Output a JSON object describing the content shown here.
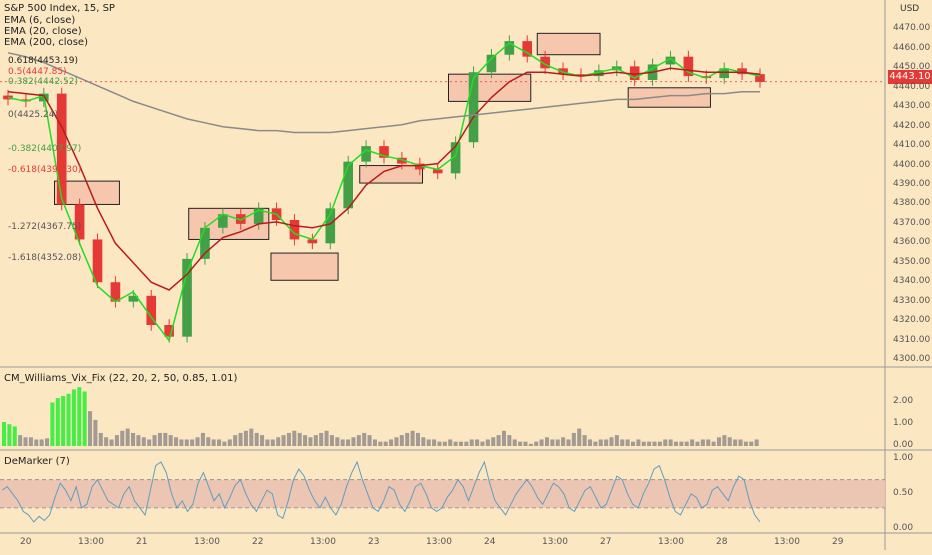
{
  "header": {
    "symbol_line": "S&P 500 Index, 15, SP",
    "ema_fast_label": "EMA (6, close)",
    "ema_mid_label": "EMA (20, close)",
    "ema_slow_label": "EMA (200, close)",
    "currency": "USD"
  },
  "price_tag": "4443.10",
  "fib_levels": [
    {
      "label": "0.618(4453.19)",
      "value": 4453.19,
      "color": "#222222"
    },
    {
      "label": "0.5(4447.85)",
      "value": 4447.85,
      "color": "#e53935"
    },
    {
      "label": "0.382(4442.52)",
      "value": 4442.52,
      "color": "#43a047"
    },
    {
      "label": "0(4425.24)",
      "value": 4425.24,
      "color": "#555555"
    },
    {
      "label": "-0.382(4407.97)",
      "value": 4407.97,
      "color": "#43a047"
    },
    {
      "label": "-0.618(4397.30)",
      "value": 4397.3,
      "color": "#e53935"
    },
    {
      "label": "-1.272(4367.75)",
      "value": 4367.75,
      "color": "#555555"
    },
    {
      "label": "-1.618(4352.08)",
      "value": 4352.08,
      "color": "#555555"
    }
  ],
  "indicators": {
    "vix_fix_label": "CM_Williams_Vix_Fix (22, 20, 2, 50, 0.85, 1.01)",
    "demarker_label": "DeMarker (7)"
  },
  "chart_data": [
    {
      "type": "candlestick",
      "title": "S&P 500 Index, 15, SP",
      "ylim": [
        4300,
        4480
      ],
      "y_ticks": [
        4300,
        4310,
        4320,
        4330,
        4340,
        4350,
        4360,
        4370,
        4380,
        4390,
        4400,
        4410,
        4420,
        4430,
        4440,
        4450,
        4460,
        4470
      ],
      "y_tick_labels": [
        "4300.00",
        "4310.00",
        "4320.00",
        "4330.00",
        "4340.00",
        "4350.00",
        "4360.00",
        "4370.00",
        "4380.00",
        "4390.00",
        "4400.00",
        "4410.00",
        "4420.00",
        "4430.00",
        "4440.00",
        "4450.00",
        "4460.00",
        "4470.00"
      ],
      "x_tick_labels": [
        "20",
        "13:00",
        "21",
        "13:00",
        "22",
        "13:00",
        "23",
        "13:00",
        "24",
        "13:00",
        "27",
        "13:00",
        "28",
        "13:00",
        "29"
      ],
      "grid": false,
      "series": [
        {
          "name": "EMA (6, close)",
          "color": "#22dd22",
          "values": [
            4435,
            4433,
            4436,
            4383,
            4360,
            4338,
            4330,
            4335,
            4322,
            4310,
            4345,
            4368,
            4375,
            4372,
            4377,
            4375,
            4365,
            4362,
            4375,
            4400,
            4408,
            4405,
            4403,
            4400,
            4398,
            4405,
            4445,
            4455,
            4463,
            4458,
            4452,
            4448,
            4446,
            4448,
            4450,
            4445,
            4450,
            4455,
            4448,
            4445,
            4450,
            4448,
            4446
          ]
        },
        {
          "name": "EMA (20, close)",
          "color": "#b71c1c",
          "values": [
            4438,
            4437,
            4436,
            4420,
            4400,
            4378,
            4360,
            4350,
            4340,
            4336,
            4344,
            4355,
            4363,
            4366,
            4370,
            4371,
            4369,
            4368,
            4370,
            4378,
            4390,
            4397,
            4400,
            4400,
            4401,
            4410,
            4425,
            4435,
            4443,
            4448,
            4448,
            4447,
            4446,
            4447,
            4448,
            4447,
            4448,
            4450,
            4449,
            4448,
            4448,
            4448,
            4447
          ]
        },
        {
          "name": "EMA (200, close)",
          "color": "#8a8a8a",
          "values": [
            4458,
            4456,
            4453,
            4449,
            4445,
            4441,
            4437,
            4433,
            4430,
            4427,
            4424,
            4422,
            4420,
            4419,
            4418,
            4418,
            4417,
            4417,
            4417,
            4418,
            4419,
            4420,
            4421,
            4423,
            4424,
            4425,
            4426,
            4427,
            4428,
            4429,
            4430,
            4431,
            4432,
            4433,
            4434,
            4434,
            4435,
            4436,
            4436,
            4437,
            4437,
            4438,
            4438
          ]
        }
      ],
      "candles": {
        "close": [
          4434,
          4433,
          4437,
          4380,
          4362,
          4340,
          4330,
          4333,
          4318,
          4312,
          4352,
          4368,
          4375,
          4370,
          4378,
          4372,
          4362,
          4360,
          4378,
          4402,
          4410,
          4404,
          4401,
          4398,
          4396,
          4412,
          4448,
          4457,
          4464,
          4456,
          4450,
          4447,
          4446,
          4449,
          4451,
          4444,
          4452,
          4456,
          4446,
          4445,
          4450,
          4447,
          4443
        ],
        "open": [
          4436,
          4434,
          4433,
          4437,
          4380,
          4362,
          4340,
          4330,
          4333,
          4318,
          4312,
          4352,
          4368,
          4375,
          4370,
          4378,
          4372,
          4362,
          4360,
          4378,
          4402,
          4410,
          4404,
          4401,
          4398,
          4396,
          4412,
          4448,
          4457,
          4464,
          4456,
          4450,
          4447,
          4446,
          4449,
          4451,
          4444,
          4452,
          4456,
          4446,
          4445,
          4450,
          4447
        ]
      }
    },
    {
      "type": "bar",
      "title": "CM_Williams_Vix_Fix (22, 20, 2, 50, 0.85, 1.01)",
      "ylim": [
        0,
        2.8
      ],
      "y_ticks": [
        0,
        1,
        2
      ],
      "y_tick_labels": [
        "0.00",
        "1.00",
        "2.00"
      ],
      "values": [
        1.1,
        1.0,
        0.9,
        0.5,
        0.4,
        0.4,
        0.3,
        0.3,
        0.35,
        2.0,
        2.2,
        2.3,
        2.4,
        2.6,
        2.7,
        2.5,
        1.6,
        1.2,
        0.6,
        0.4,
        0.3,
        0.5,
        0.7,
        0.8,
        0.6,
        0.5,
        0.4,
        0.3,
        0.5,
        0.6,
        0.6,
        0.5,
        0.4,
        0.3,
        0.3,
        0.3,
        0.4,
        0.6,
        0.4,
        0.3,
        0.3,
        0.2,
        0.3,
        0.5,
        0.6,
        0.7,
        0.8,
        0.6,
        0.5,
        0.3,
        0.3,
        0.4,
        0.5,
        0.6,
        0.7,
        0.6,
        0.5,
        0.4,
        0.5,
        0.6,
        0.7,
        0.5,
        0.4,
        0.3,
        0.3,
        0.4,
        0.5,
        0.6,
        0.5,
        0.3,
        0.2,
        0.2,
        0.3,
        0.4,
        0.5,
        0.6,
        0.7,
        0.6,
        0.4,
        0.3,
        0.3,
        0.2,
        0.2,
        0.3,
        0.2,
        0.2,
        0.2,
        0.3,
        0.3,
        0.2,
        0.3,
        0.4,
        0.5,
        0.7,
        0.5,
        0.3,
        0.2,
        0.2,
        0.1,
        0.2,
        0.3,
        0.4,
        0.3,
        0.3,
        0.4,
        0.3,
        0.6,
        0.8,
        0.5,
        0.3,
        0.2,
        0.3,
        0.3,
        0.4,
        0.5,
        0.3,
        0.3,
        0.2,
        0.3,
        0.2,
        0.2,
        0.2,
        0.2,
        0.3,
        0.3,
        0.2,
        0.2,
        0.2,
        0.3,
        0.2,
        0.3,
        0.3,
        0.2,
        0.4,
        0.5,
        0.4,
        0.3,
        0.3,
        0.2,
        0.2,
        0.3
      ],
      "highlight_colors": {
        "high": "#44ee44",
        "normal": "#a39a93"
      },
      "threshold": 1.9
    },
    {
      "type": "line",
      "title": "DeMarker (7)",
      "ylim": [
        0,
        1.05
      ],
      "y_ticks": [
        0,
        0.5,
        1
      ],
      "y_tick_labels": [
        "0.00",
        "0.50",
        "1.00"
      ],
      "band": [
        0.3,
        0.7
      ],
      "series": [
        {
          "name": "DeMarker (7)",
          "color": "#5e9ec2",
          "values": [
            0.55,
            0.6,
            0.5,
            0.4,
            0.25,
            0.2,
            0.1,
            0.18,
            0.12,
            0.2,
            0.45,
            0.65,
            0.55,
            0.4,
            0.6,
            0.3,
            0.35,
            0.6,
            0.7,
            0.55,
            0.4,
            0.35,
            0.3,
            0.5,
            0.6,
            0.4,
            0.3,
            0.2,
            0.55,
            0.9,
            0.95,
            0.8,
            0.5,
            0.3,
            0.4,
            0.25,
            0.35,
            0.65,
            0.8,
            0.6,
            0.4,
            0.5,
            0.3,
            0.45,
            0.62,
            0.7,
            0.5,
            0.35,
            0.25,
            0.4,
            0.55,
            0.5,
            0.2,
            0.15,
            0.4,
            0.7,
            0.85,
            0.75,
            0.55,
            0.4,
            0.3,
            0.45,
            0.3,
            0.2,
            0.35,
            0.6,
            0.8,
            0.95,
            0.7,
            0.5,
            0.3,
            0.25,
            0.4,
            0.6,
            0.55,
            0.35,
            0.25,
            0.4,
            0.6,
            0.65,
            0.5,
            0.3,
            0.25,
            0.3,
            0.45,
            0.55,
            0.7,
            0.6,
            0.4,
            0.6,
            0.8,
            0.95,
            0.65,
            0.4,
            0.3,
            0.2,
            0.35,
            0.5,
            0.6,
            0.7,
            0.6,
            0.45,
            0.35,
            0.5,
            0.65,
            0.6,
            0.5,
            0.3,
            0.25,
            0.4,
            0.55,
            0.6,
            0.45,
            0.3,
            0.35,
            0.55,
            0.75,
            0.7,
            0.5,
            0.35,
            0.3,
            0.5,
            0.65,
            0.85,
            0.9,
            0.7,
            0.45,
            0.25,
            0.2,
            0.35,
            0.5,
            0.45,
            0.3,
            0.35,
            0.55,
            0.6,
            0.5,
            0.4,
            0.6,
            0.75,
            0.7,
            0.4,
            0.2,
            0.1
          ]
        }
      ]
    }
  ],
  "boxes": [
    {
      "name": "zone-1",
      "x0": 0.3,
      "x1": 3.3,
      "y0": 4380,
      "y1": 4392
    },
    {
      "name": "zone-2",
      "x0": 6.5,
      "x1": 10.2,
      "y0": 4362,
      "y1": 4378
    },
    {
      "name": "zone-3",
      "x0": 10.3,
      "x1": 13.4,
      "y0": 4341,
      "y1": 4355
    },
    {
      "name": "zone-4",
      "x0": 14.4,
      "x1": 17.3,
      "y0": 4391,
      "y1": 4400
    },
    {
      "name": "zone-5",
      "x0": 18.5,
      "x1": 22.3,
      "y0": 4433,
      "y1": 4447
    },
    {
      "name": "zone-6",
      "x0": 22.6,
      "x1": 25.5,
      "y0": 4457,
      "y1": 4468
    },
    {
      "name": "zone-7",
      "x0": 26.8,
      "x1": 30.6,
      "y0": 4430,
      "y1": 4440
    }
  ]
}
